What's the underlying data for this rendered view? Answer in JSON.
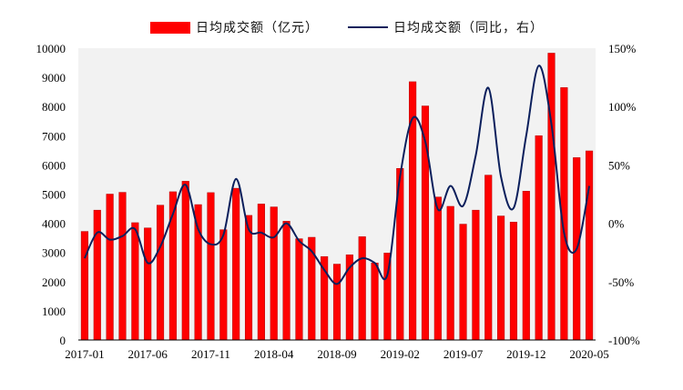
{
  "legend": {
    "bar_label": "日均成交额（亿元）",
    "line_label": "日均成交额（同比，右）"
  },
  "colors": {
    "bar": "#ff0000",
    "bar_edge": "#b00000",
    "line": "#0b1f5c",
    "plot_background": "#f2f2f2"
  },
  "chart_data": {
    "type": "bar",
    "x": [
      "2017-01",
      "2017-02",
      "2017-03",
      "2017-04",
      "2017-05",
      "2017-06",
      "2017-07",
      "2017-08",
      "2017-09",
      "2017-10",
      "2017-11",
      "2017-12",
      "2018-01",
      "2018-02",
      "2018-03",
      "2018-04",
      "2018-05",
      "2018-06",
      "2018-07",
      "2018-08",
      "2018-09",
      "2018-10",
      "2018-11",
      "2018-12",
      "2019-01",
      "2019-02",
      "2019-03",
      "2019-04",
      "2019-05",
      "2019-06",
      "2019-07",
      "2019-08",
      "2019-09",
      "2019-10",
      "2019-11",
      "2019-12",
      "2020-01",
      "2020-02",
      "2020-03",
      "2020-04",
      "2020-05"
    ],
    "x_tick_labels": [
      "2017-01",
      "2017-06",
      "2017-11",
      "2018-04",
      "2018-09",
      "2019-02",
      "2019-07",
      "2019-12",
      "2020-05"
    ],
    "series": [
      {
        "name": "日均成交额（亿元）",
        "type": "bar",
        "axis": "left",
        "values": [
          3720,
          4450,
          5000,
          5060,
          4020,
          3840,
          4620,
          5080,
          5440,
          4640,
          5050,
          3780,
          5200,
          4270,
          4660,
          4560,
          4070,
          3470,
          3520,
          2860,
          2600,
          2920,
          3540,
          2640,
          2980,
          5880,
          8850,
          8020,
          4900,
          4580,
          3970,
          4450,
          5650,
          4250,
          4040,
          5100,
          7000,
          9830,
          8650,
          6250,
          6480
        ]
      },
      {
        "name": "日均成交额（同比，右）",
        "type": "line",
        "axis": "right",
        "values": [
          -30,
          -8,
          -14,
          -11,
          -5,
          -34,
          -20,
          8,
          33,
          -5,
          -18,
          -10,
          38,
          -5,
          -8,
          -12,
          0,
          -15,
          -24,
          -40,
          -52,
          -38,
          -30,
          -34,
          -44,
          40,
          90,
          70,
          12,
          32,
          15,
          58,
          116,
          40,
          13,
          75,
          135,
          85,
          -8,
          -22,
          32
        ]
      }
    ],
    "left_axis": {
      "ylim": [
        0,
        10000
      ],
      "ticks": [
        0,
        1000,
        2000,
        3000,
        4000,
        5000,
        6000,
        7000,
        8000,
        9000,
        10000
      ]
    },
    "right_axis": {
      "ylim": [
        -100,
        150
      ],
      "ticks": [
        "-100%",
        "-50%",
        "0%",
        "50%",
        "100%",
        "150%"
      ],
      "tick_values": [
        -100,
        -50,
        0,
        50,
        100,
        150
      ]
    },
    "grid": false,
    "legend_position": "top-center"
  }
}
